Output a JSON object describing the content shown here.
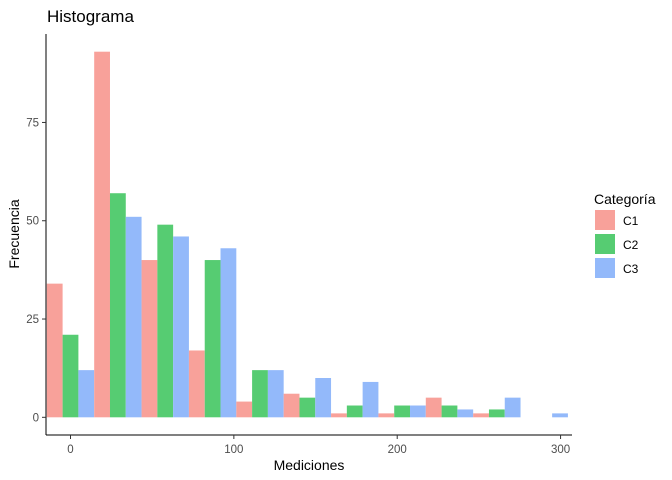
{
  "chart_data": {
    "type": "bar",
    "title": "Histograma",
    "xlabel": "Mediciones",
    "ylabel": "Frecuencia",
    "xlim": [
      -15,
      307
    ],
    "ylim": [
      -4.5,
      97.5
    ],
    "x_ticks": [
      0,
      100,
      200,
      300
    ],
    "y_ticks": [
      0,
      25,
      50,
      75
    ],
    "x_tick_labels": [
      "0",
      "100",
      "200",
      "300"
    ],
    "y_tick_labels": [
      "0",
      "25",
      "50",
      "75"
    ],
    "bin_centers": [
      0,
      29,
      58,
      87,
      116,
      145,
      174,
      203,
      232,
      261,
      290
    ],
    "bin_width": 29,
    "grid": false,
    "legend": {
      "title": "Categoría",
      "position": "right"
    },
    "series": [
      {
        "name": "C1",
        "color": "#F8A19A",
        "values": [
          34,
          93,
          40,
          17,
          4,
          6,
          1,
          1,
          5,
          1,
          0
        ]
      },
      {
        "name": "C2",
        "color": "#56CC72",
        "values": [
          21,
          57,
          49,
          40,
          12,
          5,
          3,
          3,
          3,
          2,
          0
        ]
      },
      {
        "name": "C3",
        "color": "#93B9FA",
        "values": [
          12,
          51,
          46,
          43,
          12,
          10,
          9,
          3,
          2,
          5,
          1
        ]
      }
    ]
  }
}
